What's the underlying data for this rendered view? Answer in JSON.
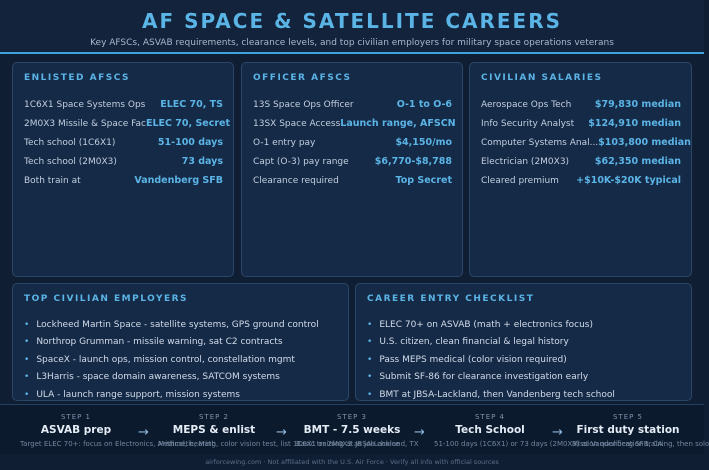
{
  "header": {
    "title": "AF SPACE & SATELLITE CAREERS",
    "subtitle": "Key AFSCs, ASVAB requirements, clearance levels, and top civilian employers for military space operations veterans"
  },
  "enlisted": {
    "title": "ENLISTED AFSCS",
    "rows": [
      {
        "label": "1C6X1 Space Systems Ops",
        "value": "ELEC 70, TS"
      },
      {
        "label": "2M0X3 Missile & Space Fac",
        "value": "ELEC 70, Secret"
      },
      {
        "label": "Tech school (1C6X1)",
        "value": "51-100 days"
      },
      {
        "label": "Tech school (2M0X3)",
        "value": "73 days"
      },
      {
        "label": "Both train at",
        "value": "Vandenberg SFB"
      }
    ]
  },
  "officer": {
    "title": "OFFICER AFSCS",
    "rows": [
      {
        "label": "13S Space Ops Officer",
        "value": "O-1 to O-6"
      },
      {
        "label": "13SX Space Access",
        "value": "Launch range, AFSCN"
      },
      {
        "label": "O-1 entry pay",
        "value": "$4,150/mo"
      },
      {
        "label": "Capt (O-3) pay range",
        "value": "$6,770-$8,788"
      },
      {
        "label": "Clearance required",
        "value": "Top Secret"
      }
    ]
  },
  "civilian": {
    "title": "CIVILIAN SALARIES",
    "rows": [
      {
        "label": "Aerospace Ops Tech",
        "value": "$79,830 median"
      },
      {
        "label": "Info Security Analyst",
        "value": "$124,910 median"
      },
      {
        "label": "Computer Systems Anal...",
        "value": "$103,800 median"
      },
      {
        "label": "Electrician (2M0X3)",
        "value": "$62,350 median"
      },
      {
        "label": "Cleared premium",
        "value": "+$10K-$20K typical"
      }
    ]
  },
  "employers": {
    "title": "TOP CIVILIAN EMPLOYERS",
    "items": [
      "Lockheed Martin Space - satellite systems, GPS ground control",
      "Northrop Grumman - missile warning, sat C2 contracts",
      "SpaceX - launch ops, mission control, constellation mgmt",
      "L3Harris - space domain awareness, SATCOM systems",
      "ULA - launch range support, mission systems"
    ]
  },
  "checklist": {
    "title": "CAREER ENTRY CHECKLIST",
    "items": [
      "ELEC 70+ on ASVAB (math + electronics focus)",
      "U.S. citizen, clean financial & legal history",
      "Pass MEPS medical (color vision required)",
      "Submit SF-86 for clearance investigation early",
      "BMT at JBSA-Lackland, then Vandenberg tech school"
    ]
  },
  "steps": [
    {
      "num": "STEP 1",
      "name": "ASVAB prep",
      "detail": "Target ELEC 70+: focus on Electronics, Arithmetic, Math"
    },
    {
      "num": "STEP 2",
      "name": "MEPS & enlist",
      "detail": "Medical, hearing, color vision test, list 1C6X1 or 2M0X3 as job choice"
    },
    {
      "num": "STEP 3",
      "name": "BMT - 7.5 weeks",
      "detail": "Basic training at JBSA-Lackland, TX"
    },
    {
      "num": "STEP 4",
      "name": "Tech School",
      "detail": "51-100 days (1C6X1) or 73 days (2M0X3) at Vandenberg SFB, CA"
    },
    {
      "num": "STEP 5",
      "name": "First duty station",
      "detail": "Mission qualification training, then solo"
    }
  ],
  "footer": "airforcewing.com · Not affiliated with the U.S. Air Force · Verify all info with official sources",
  "colors": {
    "accent": "#5bb4e6",
    "background": "#0f1e33",
    "card": "#152a47"
  }
}
